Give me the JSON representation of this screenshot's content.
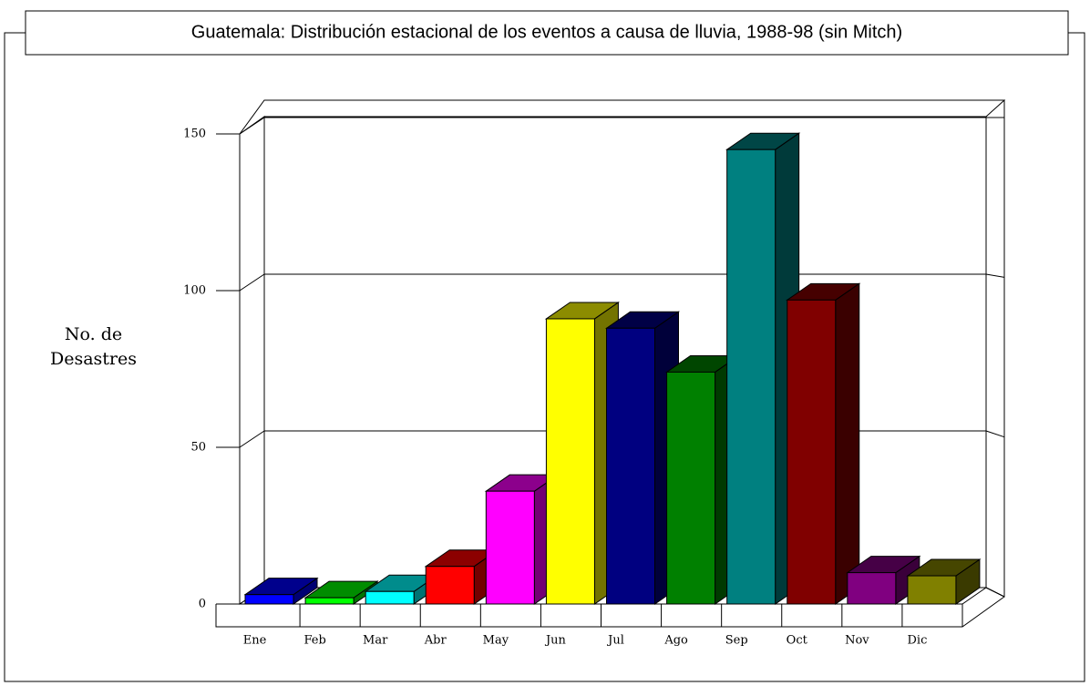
{
  "chart_data": {
    "type": "bar3d",
    "title": "Guatemala: Distribución estacional de los eventos a causa de lluvia, 1988-98 (sin Mitch)",
    "ylabel": "No. de Desastres",
    "categories": [
      "Ene",
      "Feb",
      "Mar",
      "Abr",
      "May",
      "Jun",
      "Jul",
      "Ago",
      "Sep",
      "Oct",
      "Nov",
      "Dic"
    ],
    "values": [
      3,
      2,
      4,
      12,
      36,
      91,
      88,
      74,
      145,
      97,
      10,
      9
    ],
    "colors": [
      "#0000ff",
      "#00ff00",
      "#00ffff",
      "#ff0000",
      "#ff00ff",
      "#ffff00",
      "#000080",
      "#008000",
      "#008080",
      "#800000",
      "#800080",
      "#808000"
    ],
    "ylim": [
      0,
      150
    ],
    "yticks": [
      0,
      50,
      100,
      150
    ],
    "grid": true
  }
}
